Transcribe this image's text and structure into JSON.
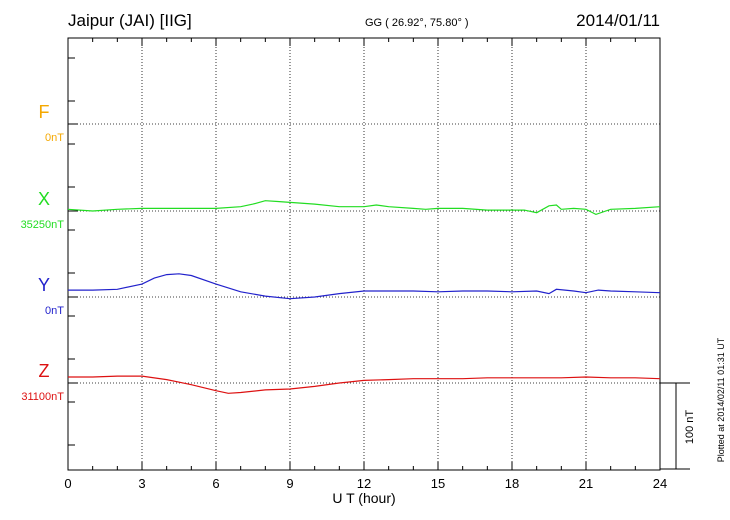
{
  "header": {
    "station": "Jaipur (JAI)  [IIG]",
    "coords": "GG ( 26.92°,  75.80° )",
    "date": "2014/01/11"
  },
  "plotted_note": "Plotted at 2014/02/11 01:31  UT",
  "scale_label": "100 nT",
  "chart_data": {
    "type": "line",
    "xlabel": "U T (hour)",
    "xlim": [
      0,
      24
    ],
    "x_ticks": [
      0,
      3,
      6,
      9,
      12,
      15,
      18,
      21,
      24
    ],
    "x_tick_labels": [
      "0",
      "3",
      "6",
      "9",
      "12",
      "15",
      "18",
      "21",
      "24"
    ],
    "grid": true,
    "scale_bar_nT": 100,
    "series": [
      {
        "name": "F",
        "baseline_label": "0nT",
        "color": "#f5a800",
        "offset_rank": 0,
        "points": []
      },
      {
        "name": "X",
        "baseline_label": "35250nT",
        "color": "#22dd22",
        "offset_rank": 1,
        "points": [
          [
            0,
            2
          ],
          [
            1,
            0
          ],
          [
            2,
            2
          ],
          [
            3,
            3
          ],
          [
            4,
            3
          ],
          [
            5,
            3
          ],
          [
            6,
            3
          ],
          [
            7,
            5
          ],
          [
            7.5,
            8
          ],
          [
            8,
            12
          ],
          [
            8.5,
            11
          ],
          [
            9,
            10
          ],
          [
            10,
            8
          ],
          [
            11,
            5
          ],
          [
            12,
            5
          ],
          [
            12.5,
            7
          ],
          [
            13,
            5
          ],
          [
            14,
            3
          ],
          [
            14.5,
            2
          ],
          [
            15,
            3
          ],
          [
            16,
            3
          ],
          [
            17,
            1
          ],
          [
            18,
            1
          ],
          [
            18.5,
            1
          ],
          [
            19,
            -2
          ],
          [
            19.5,
            6
          ],
          [
            19.8,
            7
          ],
          [
            20,
            2
          ],
          [
            20.5,
            3
          ],
          [
            21,
            2
          ],
          [
            21.4,
            -4
          ],
          [
            22,
            2
          ],
          [
            23,
            3
          ],
          [
            24,
            5
          ]
        ]
      },
      {
        "name": "Y",
        "baseline_label": "0nT",
        "color": "#2222cc",
        "offset_rank": 2,
        "points": [
          [
            0,
            8
          ],
          [
            1,
            8
          ],
          [
            2,
            9
          ],
          [
            3,
            15
          ],
          [
            3.5,
            22
          ],
          [
            4,
            26
          ],
          [
            4.5,
            27
          ],
          [
            5,
            25
          ],
          [
            6,
            15
          ],
          [
            7,
            6
          ],
          [
            8,
            1
          ],
          [
            9,
            -2
          ],
          [
            10,
            0
          ],
          [
            11,
            4
          ],
          [
            12,
            7
          ],
          [
            13,
            7
          ],
          [
            14,
            7
          ],
          [
            15,
            6
          ],
          [
            16,
            7
          ],
          [
            17,
            7
          ],
          [
            18,
            6
          ],
          [
            19,
            7
          ],
          [
            19.5,
            4
          ],
          [
            19.8,
            9
          ],
          [
            20.5,
            7
          ],
          [
            21,
            5
          ],
          [
            21.5,
            8
          ],
          [
            22,
            7
          ],
          [
            23,
            6
          ],
          [
            24,
            5
          ]
        ]
      },
      {
        "name": "Z",
        "baseline_label": "31100nT",
        "color": "#dd1111",
        "offset_rank": 3,
        "points": [
          [
            0,
            7
          ],
          [
            1,
            7
          ],
          [
            2,
            8
          ],
          [
            3,
            8
          ],
          [
            4,
            4
          ],
          [
            5,
            -2
          ],
          [
            6,
            -9
          ],
          [
            6.5,
            -12
          ],
          [
            7,
            -11
          ],
          [
            8,
            -8
          ],
          [
            9,
            -7
          ],
          [
            10,
            -4
          ],
          [
            11,
            0
          ],
          [
            12,
            3
          ],
          [
            13,
            4
          ],
          [
            14,
            5
          ],
          [
            15,
            5
          ],
          [
            16,
            5
          ],
          [
            17,
            6
          ],
          [
            18,
            6
          ],
          [
            19,
            6
          ],
          [
            20,
            6
          ],
          [
            21,
            7
          ],
          [
            22,
            6
          ],
          [
            23,
            6
          ],
          [
            24,
            5
          ]
        ]
      }
    ]
  }
}
